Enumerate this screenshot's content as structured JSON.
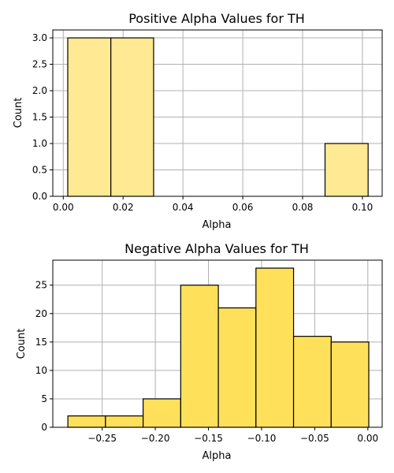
{
  "chart_data": [
    {
      "type": "bar",
      "title": "Positive Alpha Values for TH",
      "xlabel": "Alpha",
      "ylabel": "Count",
      "xlim": [
        -0.0035,
        0.1066
      ],
      "ylim": [
        0,
        3.15
      ],
      "grid": true,
      "bar_color": "#ffe992",
      "xticks": [
        0.0,
        0.02,
        0.04,
        0.06,
        0.08,
        0.1
      ],
      "xtick_labels": [
        "0.00",
        "0.02",
        "0.04",
        "0.06",
        "0.08",
        "0.10"
      ],
      "yticks": [
        0,
        0.5,
        1.0,
        1.5,
        2.0,
        2.5,
        3.0
      ],
      "ytick_labels": [
        "0.0",
        "0.5",
        "1.0",
        "1.5",
        "2.0",
        "2.5",
        "3.0"
      ],
      "bins": [
        {
          "start": 0.0015,
          "end": 0.0159,
          "count": 3
        },
        {
          "start": 0.0159,
          "end": 0.0302,
          "count": 3
        },
        {
          "start": 0.0875,
          "end": 0.1019,
          "count": 1
        }
      ]
    },
    {
      "type": "bar",
      "title": "Negative Alpha Values for TH",
      "xlabel": "Alpha",
      "ylabel": "Count",
      "xlim": [
        -0.2965,
        0.0135
      ],
      "ylim": [
        0,
        29.4
      ],
      "grid": true,
      "bar_color": "#ffe05a",
      "xticks": [
        -0.25,
        -0.2,
        -0.15,
        -0.1,
        -0.05,
        0.0
      ],
      "xtick_labels": [
        "−0.25",
        "−0.20",
        "−0.15",
        "−0.10",
        "−0.05",
        "0.00"
      ],
      "yticks": [
        0,
        5,
        10,
        15,
        20,
        25
      ],
      "ytick_labels": [
        "0",
        "5",
        "10",
        "15",
        "20",
        "25"
      ],
      "bins": [
        {
          "start": -0.2823,
          "end": -0.2469,
          "count": 2
        },
        {
          "start": -0.2469,
          "end": -0.2115,
          "count": 2
        },
        {
          "start": -0.2115,
          "end": -0.1761,
          "count": 5
        },
        {
          "start": -0.1761,
          "end": -0.1407,
          "count": 25
        },
        {
          "start": -0.1407,
          "end": -0.1053,
          "count": 21
        },
        {
          "start": -0.1053,
          "end": -0.0699,
          "count": 28
        },
        {
          "start": -0.0699,
          "end": -0.0345,
          "count": 16
        },
        {
          "start": -0.0345,
          "end": 0.0009,
          "count": 15
        }
      ]
    }
  ]
}
